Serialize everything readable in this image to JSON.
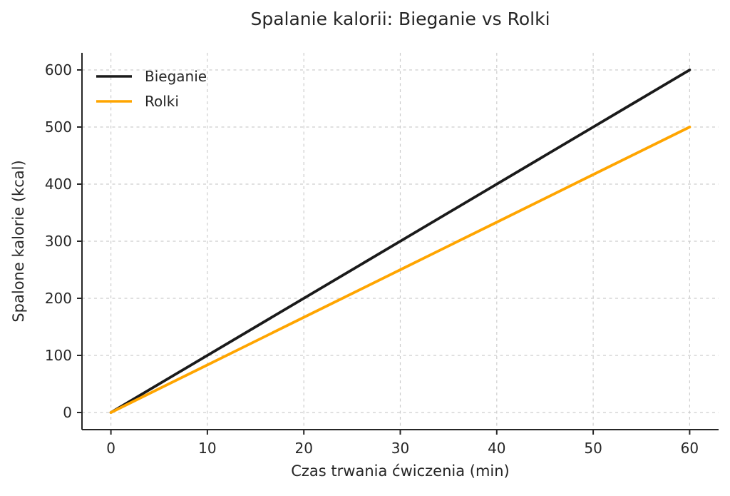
{
  "chart_data": {
    "type": "line",
    "title": "Spalanie kalorii: Bieganie vs Rolki",
    "xlabel": "Czas trwania ćwiczenia (min)",
    "ylabel": "Spalone kalorie (kcal)",
    "x": [
      0,
      10,
      20,
      30,
      40,
      50,
      60
    ],
    "series": [
      {
        "name": "Bieganie",
        "color": "#1a1a1a",
        "values": [
          0,
          100,
          200,
          300,
          400,
          500,
          600
        ]
      },
      {
        "name": "Rolki",
        "color": "#FFA500",
        "values": [
          0,
          83.3,
          166.7,
          250,
          333.3,
          416.7,
          500
        ]
      }
    ],
    "xticks": [
      0,
      10,
      20,
      30,
      40,
      50,
      60
    ],
    "yticks": [
      0,
      100,
      200,
      300,
      400,
      500,
      600
    ],
    "xlim": [
      -3,
      63
    ],
    "ylim": [
      -30,
      630
    ],
    "grid": true,
    "grid_style": "dashed",
    "grid_color": "#cdcdcd",
    "axis_color": "#262626",
    "background": "#ffffff",
    "legend_position": "upper-left",
    "legend_frame": false
  }
}
